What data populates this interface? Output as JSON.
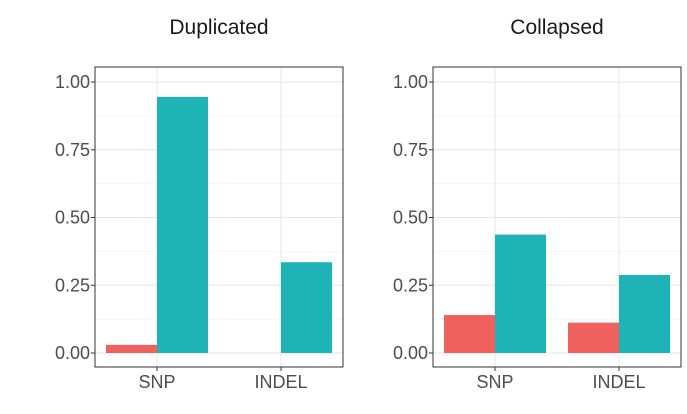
{
  "chart_data": [
    {
      "type": "bar",
      "title": "Duplicated",
      "categories": [
        "SNP",
        "INDEL"
      ],
      "series": [
        {
          "color": "#F0605D",
          "values": [
            0.03,
            0.0
          ]
        },
        {
          "color": "#1EB4B7",
          "values": [
            0.945,
            0.335
          ]
        }
      ],
      "ylim": [
        0,
        1.0
      ],
      "yticks": [
        "0.00",
        "0.25",
        "0.50",
        "0.75",
        "1.00"
      ],
      "grid": true,
      "legend": "none"
    },
    {
      "type": "bar",
      "title": "Collapsed",
      "categories": [
        "SNP",
        "INDEL"
      ],
      "series": [
        {
          "color": "#F0605D",
          "values": [
            0.14,
            0.112
          ]
        },
        {
          "color": "#1EB4B7",
          "values": [
            0.437,
            0.288
          ]
        }
      ],
      "ylim": [
        0,
        1.0
      ],
      "yticks": [
        "0.00",
        "0.25",
        "0.50",
        "0.75",
        "1.00"
      ],
      "grid": true,
      "legend": "none"
    }
  ]
}
